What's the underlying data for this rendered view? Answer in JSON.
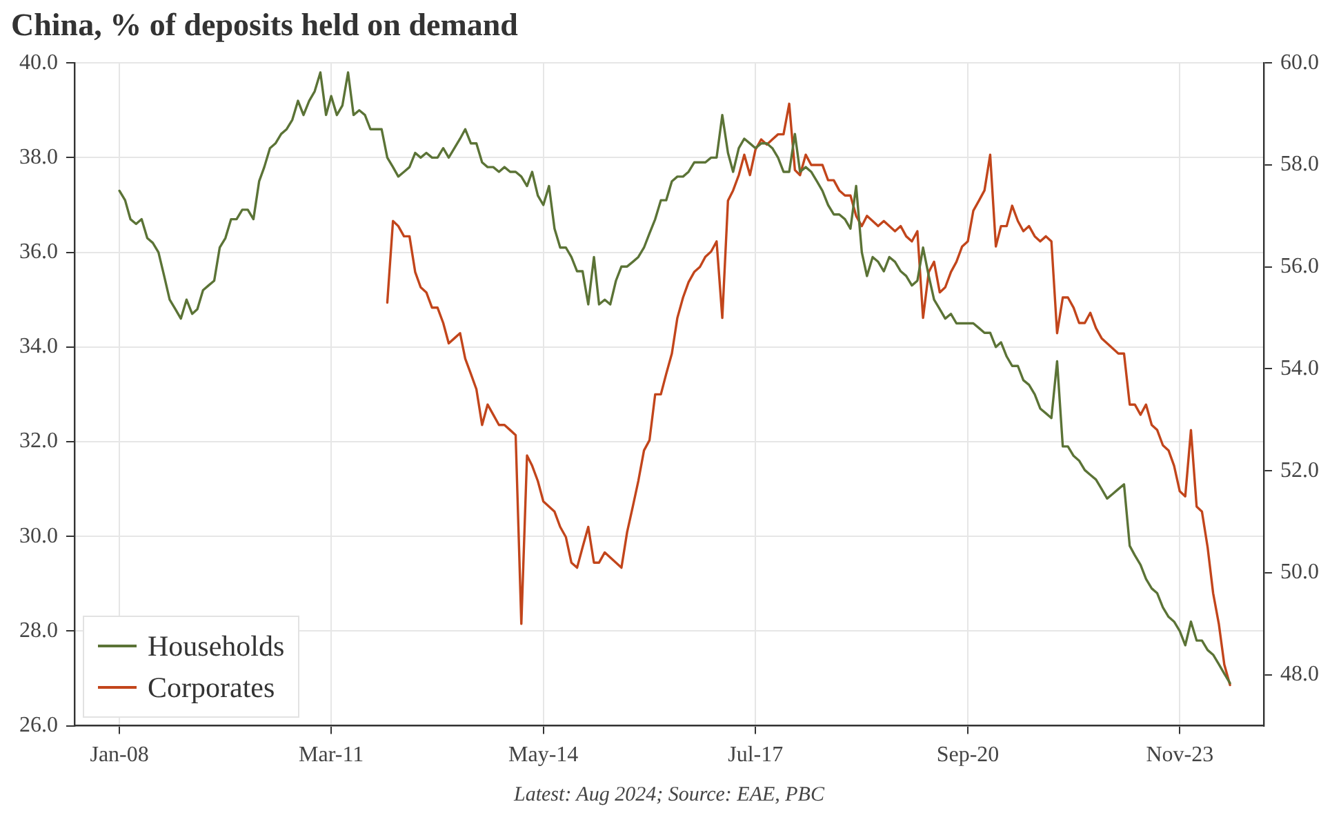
{
  "chart_data": {
    "type": "line",
    "title": "China, % of deposits held on demand",
    "annotations": [
      "Latest: Aug 2024; Source: EAE, PBC"
    ],
    "x": [
      "2008-01",
      "2008-02",
      "2008-03",
      "2008-04",
      "2008-05",
      "2008-06",
      "2008-07",
      "2008-08",
      "2008-09",
      "2008-10",
      "2008-11",
      "2008-12",
      "2009-01",
      "2009-02",
      "2009-03",
      "2009-04",
      "2009-05",
      "2009-06",
      "2009-07",
      "2009-08",
      "2009-09",
      "2009-10",
      "2009-11",
      "2009-12",
      "2010-01",
      "2010-02",
      "2010-03",
      "2010-04",
      "2010-05",
      "2010-06",
      "2010-07",
      "2010-08",
      "2010-09",
      "2010-10",
      "2010-11",
      "2010-12",
      "2011-01",
      "2011-02",
      "2011-03",
      "2011-04",
      "2011-05",
      "2011-06",
      "2011-07",
      "2011-08",
      "2011-09",
      "2011-10",
      "2011-11",
      "2011-12",
      "2012-01",
      "2012-02",
      "2012-03",
      "2012-04",
      "2012-05",
      "2012-06",
      "2012-07",
      "2012-08",
      "2012-09",
      "2012-10",
      "2012-11",
      "2012-12",
      "2013-01",
      "2013-02",
      "2013-03",
      "2013-04",
      "2013-05",
      "2013-06",
      "2013-07",
      "2013-08",
      "2013-09",
      "2013-10",
      "2013-11",
      "2013-12",
      "2014-01",
      "2014-02",
      "2014-03",
      "2014-04",
      "2014-05",
      "2014-06",
      "2014-07",
      "2014-08",
      "2014-09",
      "2014-10",
      "2014-11",
      "2014-12",
      "2015-01",
      "2015-02",
      "2015-03",
      "2015-04",
      "2015-05",
      "2015-06",
      "2015-07",
      "2015-08",
      "2015-09",
      "2015-10",
      "2015-11",
      "2015-12",
      "2016-01",
      "2016-02",
      "2016-03",
      "2016-04",
      "2016-05",
      "2016-06",
      "2016-07",
      "2016-08",
      "2016-09",
      "2016-10",
      "2016-11",
      "2016-12",
      "2017-01",
      "2017-02",
      "2017-03",
      "2017-04",
      "2017-05",
      "2017-06",
      "2017-07",
      "2017-08",
      "2017-09",
      "2017-10",
      "2017-11",
      "2017-12",
      "2018-01",
      "2018-02",
      "2018-03",
      "2018-04",
      "2018-05",
      "2018-06",
      "2018-07",
      "2018-08",
      "2018-09",
      "2018-10",
      "2018-11",
      "2018-12",
      "2019-01",
      "2019-02",
      "2019-03",
      "2019-04",
      "2019-05",
      "2019-06",
      "2019-07",
      "2019-08",
      "2019-09",
      "2019-10",
      "2019-11",
      "2019-12",
      "2020-01",
      "2020-02",
      "2020-03",
      "2020-04",
      "2020-05",
      "2020-06",
      "2020-07",
      "2020-08",
      "2020-09",
      "2020-10",
      "2020-11",
      "2020-12",
      "2021-01",
      "2021-02",
      "2021-03",
      "2021-04",
      "2021-05",
      "2021-06",
      "2021-07",
      "2021-08",
      "2021-09",
      "2021-10",
      "2021-11",
      "2021-12",
      "2022-01",
      "2022-02",
      "2022-03",
      "2022-04",
      "2022-05",
      "2022-06",
      "2022-07",
      "2022-08",
      "2022-09",
      "2022-10",
      "2022-11",
      "2022-12",
      "2023-01",
      "2023-02",
      "2023-03",
      "2023-04",
      "2023-05",
      "2023-06",
      "2023-07",
      "2023-08",
      "2023-09",
      "2023-10",
      "2023-11",
      "2023-12",
      "2024-01",
      "2024-02",
      "2024-03",
      "2024-04",
      "2024-05",
      "2024-06",
      "2024-07",
      "2024-08"
    ],
    "series": [
      {
        "name": "Households",
        "color": "#5b7336",
        "axis": "y",
        "values": [
          37.3,
          37.1,
          36.7,
          36.6,
          36.7,
          36.3,
          36.2,
          36.0,
          35.5,
          35.0,
          34.8,
          34.6,
          35.0,
          34.7,
          34.8,
          35.2,
          35.3,
          35.4,
          36.1,
          36.3,
          36.7,
          36.7,
          36.9,
          36.9,
          36.7,
          37.5,
          37.8,
          38.2,
          38.3,
          38.5,
          38.6,
          38.8,
          39.2,
          38.9,
          39.2,
          39.4,
          39.8,
          38.9,
          39.3,
          38.9,
          39.1,
          39.8,
          38.9,
          39.0,
          38.9,
          38.6,
          38.6,
          38.6,
          38.0,
          37.8,
          37.6,
          37.7,
          37.8,
          38.1,
          38.0,
          38.1,
          38.0,
          38.0,
          38.2,
          38.0,
          38.2,
          38.4,
          38.6,
          38.3,
          38.3,
          37.9,
          37.8,
          37.8,
          37.7,
          37.8,
          37.7,
          37.7,
          37.6,
          37.4,
          37.7,
          37.2,
          37.0,
          37.4,
          36.5,
          36.1,
          36.1,
          35.9,
          35.6,
          35.6,
          34.9,
          35.9,
          34.9,
          35.0,
          34.9,
          35.4,
          35.7,
          35.7,
          35.8,
          35.9,
          36.1,
          36.4,
          36.7,
          37.1,
          37.1,
          37.5,
          37.6,
          37.6,
          37.7,
          37.9,
          37.9,
          37.9,
          38.0,
          38.0,
          38.9,
          38.1,
          37.7,
          38.2,
          38.4,
          38.3,
          38.2,
          38.3,
          38.3,
          38.2,
          38.0,
          37.7,
          37.7,
          38.5,
          37.7,
          37.8,
          37.7,
          37.5,
          37.3,
          37.0,
          36.8,
          36.8,
          36.7,
          36.5,
          37.4,
          36.0,
          35.5,
          35.9,
          35.8,
          35.6,
          35.9,
          35.8,
          35.6,
          35.5,
          35.3,
          35.4,
          36.1,
          35.5,
          35.0,
          34.8,
          34.6,
          34.7,
          34.5,
          34.5,
          34.5,
          34.5,
          34.4,
          34.3,
          34.3,
          34.0,
          34.1,
          33.8,
          33.6,
          33.6,
          33.3,
          33.2,
          33.0,
          32.7,
          32.6,
          32.5,
          33.7,
          31.9,
          31.9,
          31.7,
          31.6,
          31.4,
          31.3,
          31.2,
          31.0,
          30.8,
          30.9,
          31.0,
          31.1,
          29.8,
          29.6,
          29.4,
          29.1,
          28.9,
          28.8,
          28.5,
          28.3,
          28.2,
          28.0,
          27.7,
          28.2,
          27.8,
          27.8,
          27.6,
          27.5,
          27.3,
          27.1,
          26.9
        ]
      },
      {
        "name": "Corporates",
        "color": "#c2451b",
        "axis": "y2",
        "values": [
          null,
          null,
          null,
          null,
          null,
          null,
          null,
          null,
          null,
          null,
          null,
          null,
          null,
          null,
          null,
          null,
          null,
          null,
          null,
          null,
          null,
          null,
          null,
          null,
          null,
          null,
          null,
          null,
          null,
          null,
          null,
          null,
          null,
          null,
          null,
          null,
          null,
          null,
          null,
          null,
          null,
          null,
          null,
          null,
          null,
          null,
          null,
          null,
          55.3,
          56.9,
          56.8,
          56.6,
          56.6,
          55.9,
          55.6,
          55.5,
          55.2,
          55.2,
          54.9,
          54.5,
          54.6,
          54.7,
          54.2,
          53.9,
          53.6,
          52.9,
          53.3,
          53.1,
          52.9,
          52.9,
          52.8,
          52.7,
          49.0,
          52.3,
          52.1,
          51.8,
          51.4,
          51.3,
          51.2,
          50.9,
          50.7,
          50.2,
          50.1,
          50.5,
          50.9,
          50.2,
          50.2,
          50.4,
          50.3,
          50.2,
          50.1,
          50.8,
          51.3,
          51.8,
          52.4,
          52.6,
          53.5,
          53.5,
          53.9,
          54.3,
          55.0,
          55.4,
          55.7,
          55.9,
          56.0,
          56.2,
          56.3,
          56.5,
          55.0,
          57.3,
          57.5,
          57.8,
          58.2,
          57.8,
          58.3,
          58.5,
          58.4,
          58.5,
          58.6,
          58.6,
          59.2,
          57.9,
          57.8,
          58.2,
          58.0,
          58.0,
          58.0,
          57.7,
          57.7,
          57.5,
          57.4,
          57.4,
          57.0,
          56.8,
          57.0,
          56.9,
          56.8,
          56.9,
          56.8,
          56.7,
          56.8,
          56.6,
          56.5,
          56.7,
          55.0,
          55.9,
          56.1,
          55.5,
          55.6,
          55.9,
          56.1,
          56.4,
          56.5,
          57.1,
          57.3,
          57.5,
          58.2,
          56.4,
          56.8,
          56.8,
          57.2,
          56.9,
          56.7,
          56.8,
          56.6,
          56.5,
          56.6,
          56.5,
          54.7,
          55.4,
          55.4,
          55.2,
          54.9,
          54.9,
          55.1,
          54.8,
          54.6,
          54.5,
          54.4,
          54.3,
          54.3,
          53.3,
          53.3,
          53.1,
          53.3,
          52.9,
          52.8,
          52.5,
          52.4,
          52.1,
          51.6,
          51.5,
          52.8,
          51.3,
          51.2,
          50.5,
          49.6,
          49.0,
          48.2,
          47.8
        ]
      }
    ],
    "xlim": [
      "2007-05",
      "2025-02"
    ],
    "xticks": [
      {
        "value": "2008-01",
        "label": "Jan-08"
      },
      {
        "value": "2011-03",
        "label": "Mar-11"
      },
      {
        "value": "2014-05",
        "label": "May-14"
      },
      {
        "value": "2017-07",
        "label": "Jul-17"
      },
      {
        "value": "2020-09",
        "label": "Sep-20"
      },
      {
        "value": "2023-11",
        "label": "Nov-23"
      }
    ],
    "ylim": [
      26,
      40
    ],
    "yticks": [
      {
        "value": 26,
        "label": "26.0"
      },
      {
        "value": 28,
        "label": "28.0"
      },
      {
        "value": 30,
        "label": "30.0"
      },
      {
        "value": 32,
        "label": "32.0"
      },
      {
        "value": 34,
        "label": "34.0"
      },
      {
        "value": 36,
        "label": "36.0"
      },
      {
        "value": 38,
        "label": "38.0"
      },
      {
        "value": 40,
        "label": "40.0"
      }
    ],
    "y2lim": [
      47,
      60
    ],
    "y2ticks": [
      {
        "value": 48,
        "label": "48.0"
      },
      {
        "value": 50,
        "label": "50.0"
      },
      {
        "value": 52,
        "label": "52.0"
      },
      {
        "value": 54,
        "label": "54.0"
      },
      {
        "value": 56,
        "label": "56.0"
      },
      {
        "value": 58,
        "label": "58.0"
      },
      {
        "value": 60,
        "label": "60.0"
      }
    ],
    "grid": true,
    "legend": "bottom left",
    "line_style": "solid"
  }
}
